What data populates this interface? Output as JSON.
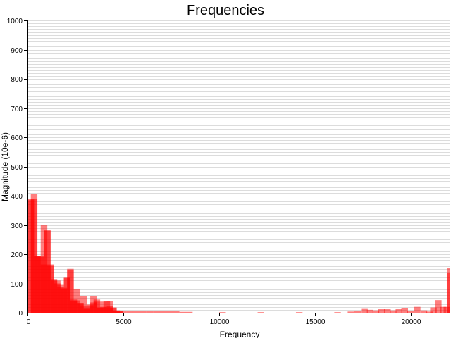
{
  "chart_data": {
    "type": "bar",
    "title": "Frequencies",
    "xlabel": "Frequency",
    "ylabel": "Magnitude (10e-6)",
    "xlim": [
      0,
      22050
    ],
    "ylim": [
      0,
      1000
    ],
    "grid": true,
    "bar_color": "#ff0000",
    "bar_opacity": 0.5,
    "x_ticks": [
      0,
      5000,
      10000,
      15000,
      20000
    ],
    "y_ticks": [
      0,
      100,
      200,
      300,
      400,
      500,
      600,
      700,
      800,
      900,
      1000
    ],
    "bar_width": 344.5,
    "series": [
      {
        "x": [
          0,
          172,
          344,
          516,
          689,
          861,
          1033,
          1206,
          1378,
          1550,
          1722,
          1895,
          2067,
          2239,
          2411,
          2584,
          2756,
          2928,
          3100,
          3273,
          3445,
          3617,
          3789,
          3962,
          4134,
          4306,
          4478,
          4651,
          4823,
          5168,
          5512,
          5857,
          6201,
          6546,
          6890,
          7235,
          7579,
          7924,
          8268,
          10000,
          12000,
          14000,
          16000,
          16700,
          17050,
          17400,
          17700,
          18000,
          18300,
          18600,
          18900,
          19200,
          19500,
          19800,
          20150,
          20500,
          20800,
          21000,
          21250,
          21500,
          21700,
          21900
        ],
        "values": [
          390,
          405,
          195,
          193,
          300,
          282,
          165,
          115,
          110,
          95,
          85,
          120,
          150,
          45,
          82,
          33,
          57,
          15,
          28,
          57,
          45,
          18,
          38,
          40,
          40,
          18,
          8,
          5,
          5,
          5,
          5,
          5,
          5,
          5,
          5,
          5,
          5,
          3,
          3,
          2,
          2,
          2,
          2,
          4,
          7,
          13,
          10,
          8,
          12,
          12,
          8,
          12,
          15,
          6,
          20,
          8,
          4,
          18,
          43,
          20,
          20,
          152
        ]
      },
      {
        "x": [
          0,
          172,
          344,
          516,
          689,
          861,
          1033,
          1206,
          1378,
          1550,
          1722,
          1895,
          2067,
          2239,
          2411,
          2584,
          2756,
          2928,
          3100,
          3273,
          3445,
          3617,
          3789,
          3962,
          4134,
          4306,
          4478,
          4651,
          21900
        ],
        "values": [
          385,
          390,
          195,
          190,
          165,
          280,
          160,
          110,
          100,
          88,
          80,
          118,
          145,
          40,
          42,
          30,
          25,
          12,
          25,
          35,
          38,
          15,
          20,
          18,
          22,
          15,
          6,
          4,
          135
        ]
      }
    ]
  }
}
